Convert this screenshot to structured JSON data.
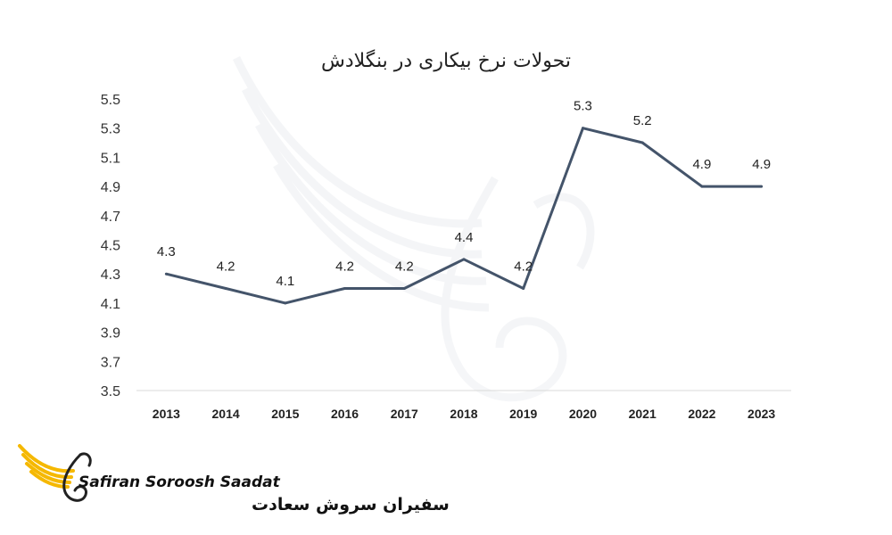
{
  "chart_data": {
    "type": "line",
    "title": "تحولات نرخ بیکاری در بنگلادش",
    "xlabel": "",
    "ylabel": "",
    "categories": [
      "2013",
      "2014",
      "2015",
      "2016",
      "2017",
      "2018",
      "2019",
      "2020",
      "2021",
      "2022",
      "2023"
    ],
    "series": [
      {
        "values": [
          4.3,
          4.2,
          4.1,
          4.2,
          4.2,
          4.4,
          4.2,
          5.3,
          5.2,
          4.9,
          4.9
        ]
      }
    ],
    "data_labels": [
      "4.3",
      "4.2",
      "4.1",
      "4.2",
      "4.2",
      "4.4",
      "4.2",
      "5.3",
      "5.2",
      "4.9",
      "4.9"
    ],
    "yticks": [
      "3.5",
      "3.7",
      "3.9",
      "4.1",
      "4.3",
      "4.5",
      "4.7",
      "4.9",
      "5.1",
      "5.3",
      "5.5"
    ],
    "ylim": [
      3.5,
      5.5
    ],
    "grid": false,
    "legend": "none",
    "line_color": "#44546a"
  },
  "brand": {
    "latin_name": "Safiran Soroosh Saadat",
    "persian_name": "سفیران سروش سعادت",
    "logo_color": "#f5b800"
  }
}
